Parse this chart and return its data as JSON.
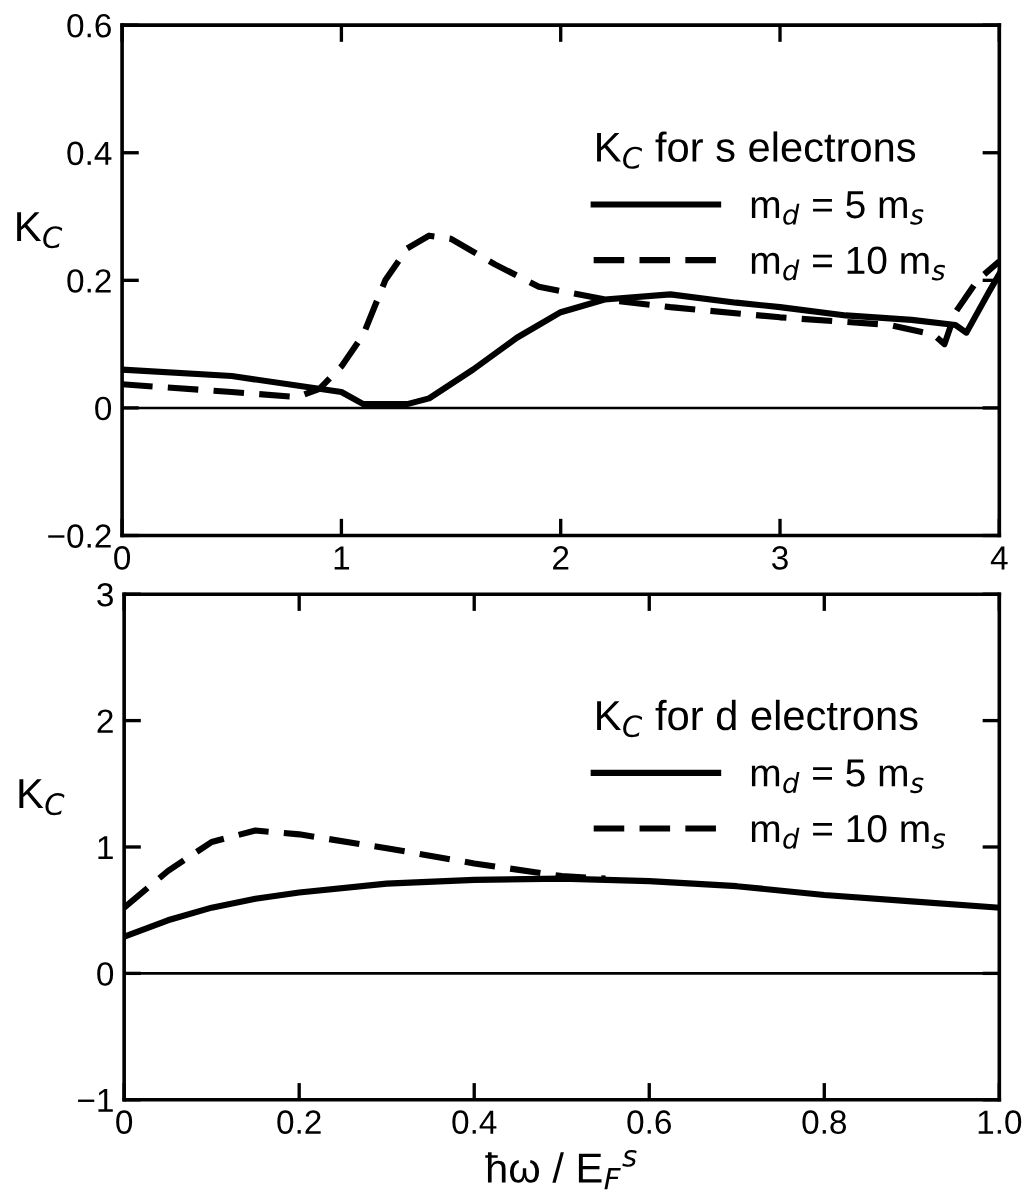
{
  "chart_data": [
    {
      "type": "line",
      "ylabel": "K$_{C}$",
      "legend_title": "K$_{C}$ for s electrons",
      "legend": "top right",
      "grid": false,
      "xlim": [
        0,
        4
      ],
      "xticks": [
        0,
        1,
        2,
        3,
        4
      ],
      "ylim": [
        -0.2,
        0.6
      ],
      "yticks": [
        {
          "value": -0.2,
          "label": "−0.2"
        },
        0,
        0.2,
        0.4,
        0.6
      ],
      "ref_lines": [
        {
          "axis": "y",
          "value": 0,
          "label": null,
          "color": "#000000"
        }
      ],
      "series": [
        {
          "name": "m$_{d}$ = 5 m$_{s}$",
          "color": "#000000",
          "line_style": "solid",
          "x": [
            0,
            0.5,
            1.0,
            1.1,
            1.3,
            1.4,
            1.6,
            1.8,
            2.0,
            2.2,
            2.5,
            2.8,
            3.0,
            3.3,
            3.6,
            3.8,
            3.85,
            3.95,
            4.0
          ],
          "values": [
            0.06,
            0.05,
            0.025,
            0.006,
            0.006,
            0.015,
            0.06,
            0.11,
            0.15,
            0.17,
            0.178,
            0.165,
            0.158,
            0.145,
            0.138,
            0.13,
            0.118,
            0.18,
            0.21
          ]
        },
        {
          "name": "m$_{d}$ = 10 m$_{s}$",
          "color": "#000000",
          "line_style": "dashed",
          "x": [
            0,
            0.5,
            0.8,
            0.9,
            1.0,
            1.1,
            1.2,
            1.3,
            1.4,
            1.5,
            1.7,
            1.9,
            2.2,
            2.5,
            3.0,
            3.5,
            3.7,
            3.75,
            3.8,
            3.9,
            4.0
          ],
          "values": [
            0.037,
            0.025,
            0.017,
            0.03,
            0.065,
            0.115,
            0.2,
            0.25,
            0.27,
            0.265,
            0.225,
            0.19,
            0.17,
            0.158,
            0.142,
            0.13,
            0.115,
            0.1,
            0.15,
            0.2,
            0.23
          ]
        }
      ]
    },
    {
      "type": "line",
      "ylabel": "K$_{C}$",
      "xlabel": "ħω / E$_{F}$$^{s}$",
      "legend_title": "K$_{C}$ for d electrons",
      "legend": "top right",
      "grid": false,
      "xlim": [
        0,
        1.0
      ],
      "xticks": [
        0,
        0.2,
        0.4,
        0.6,
        0.8,
        {
          "value": 1.0,
          "label": "1.0"
        }
      ],
      "ylim": [
        -1,
        3
      ],
      "yticks": [
        {
          "value": -1,
          "label": "−1"
        },
        0,
        1,
        2,
        3
      ],
      "ref_lines": [
        {
          "axis": "y",
          "value": 0,
          "label": null,
          "color": "#000000"
        }
      ],
      "series": [
        {
          "name": "m$_{d}$ = 5 m$_{s}$",
          "color": "#000000",
          "line_style": "solid",
          "x": [
            0,
            0.05,
            0.1,
            0.15,
            0.2,
            0.3,
            0.4,
            0.5,
            0.6,
            0.7,
            0.8,
            0.9,
            1.0
          ],
          "values": [
            0.29,
            0.42,
            0.52,
            0.59,
            0.64,
            0.71,
            0.74,
            0.75,
            0.73,
            0.69,
            0.62,
            0.57,
            0.52
          ]
        },
        {
          "name": "m$_{d}$ = 10 m$_{s}$",
          "color": "#000000",
          "line_style": "dashed",
          "x": [
            0,
            0.05,
            0.1,
            0.15,
            0.2,
            0.3,
            0.4,
            0.5,
            0.55
          ],
          "values": [
            0.52,
            0.81,
            1.04,
            1.13,
            1.1,
            0.99,
            0.87,
            0.77,
            0.75
          ]
        }
      ]
    }
  ]
}
